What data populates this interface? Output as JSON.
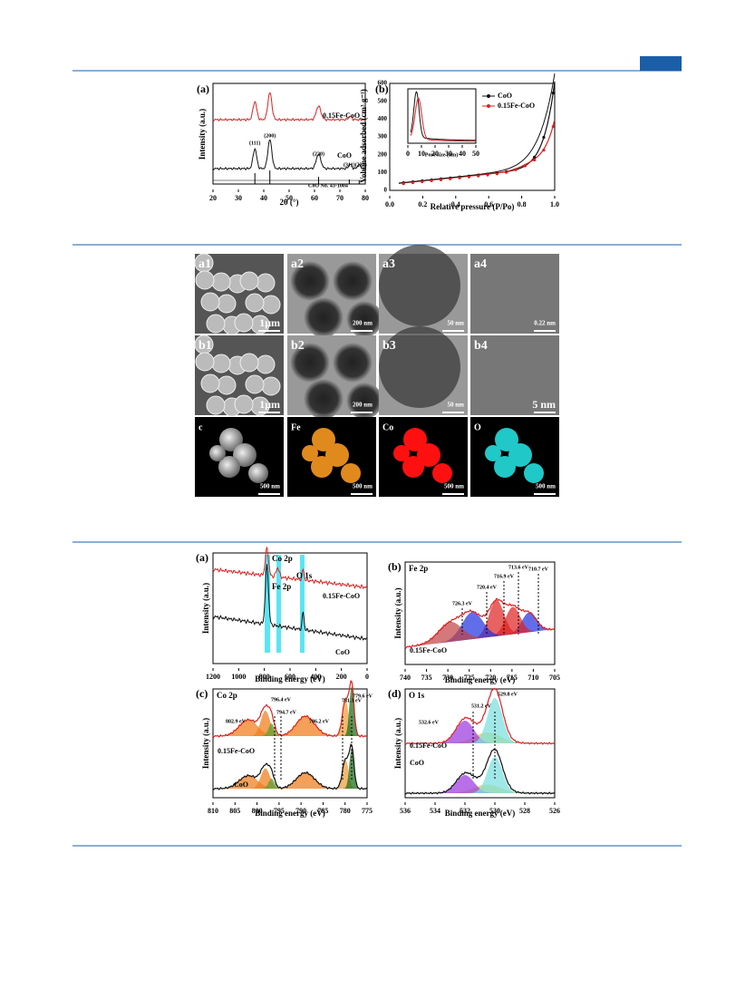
{
  "fig1": {
    "a": {
      "label": "(a)",
      "ylabel": "Intensity (a.u.)",
      "xlabel": "2θ (°)",
      "xticks": [
        "20",
        "30",
        "40",
        "50",
        "60",
        "70",
        "80"
      ],
      "series": [
        "0.15Fe-CoO",
        "CoO"
      ],
      "peaks": [
        "(111)",
        "(200)",
        "(220)",
        "(311)(222)"
      ],
      "ref": "CoO No. 43-1004"
    },
    "b": {
      "label": "(b)",
      "ylabel": "Volume adsorbed (cm³ g⁻¹)",
      "xlabel": "Relative pressure (P/Po)",
      "xticks": [
        "0.0",
        "0.2",
        "0.4",
        "0.6",
        "0.8",
        "1.0"
      ],
      "yticks": [
        "0",
        "100",
        "200",
        "300",
        "400",
        "500",
        "600"
      ],
      "legend": [
        "CoO",
        "0.15Fe-CoO"
      ],
      "inset_xlabel": "Pore size (nm)",
      "inset_xticks": [
        "0",
        "10",
        "20",
        "30",
        "40",
        "50"
      ]
    }
  },
  "fig2": {
    "cells": [
      {
        "label": "a1",
        "scale": "1μm"
      },
      {
        "label": "a2",
        "scale": "200 nm"
      },
      {
        "label": "a3",
        "scale": "50 nm"
      },
      {
        "label": "a4",
        "scale": "0.22 nm"
      },
      {
        "label": "b1",
        "scale": "1μm"
      },
      {
        "label": "b2",
        "scale": "200 nm"
      },
      {
        "label": "b3",
        "scale": "50 nm"
      },
      {
        "label": "b4",
        "scale": "5 nm"
      },
      {
        "label": "c",
        "scale": "500 nm"
      },
      {
        "label": "Fe",
        "scale": "500 nm"
      },
      {
        "label": "Co",
        "scale": "500 nm"
      },
      {
        "label": "O",
        "scale": "500 nm"
      }
    ]
  },
  "fig3": {
    "a": {
      "label": "(a)",
      "ylabel": "Intensity (a.u.)",
      "xlabel": "Binding energy (eV)",
      "xticks": [
        "1200",
        "1000",
        "800",
        "600",
        "400",
        "200",
        "0"
      ],
      "annotations": [
        "Co 2p",
        "Fe 2p",
        "O 1s"
      ],
      "series": [
        "0.15Fe-CoO",
        "CoO"
      ]
    },
    "b": {
      "label": "(b)",
      "title": "Fe 2p",
      "ylabel": "Intensity (a.u.)",
      "xlabel": "Binding energy (eV)",
      "xticks": [
        "740",
        "735",
        "730",
        "725",
        "720",
        "715",
        "710",
        "705"
      ],
      "peaks": [
        "726.3 eV",
        "720.4 eV",
        "716.9 eV",
        "713.6 eV",
        "710.7 eV"
      ],
      "series": "0.15Fe-CoO"
    },
    "c": {
      "label": "(c)",
      "title": "Co 2p",
      "ylabel": "Intensity (a.u.)",
      "xlabel": "Binding energy (eV)",
      "xticks": [
        "810",
        "805",
        "800",
        "795",
        "790",
        "785",
        "780",
        "775"
      ],
      "peaks": [
        "802.9 eV",
        "796.4 eV",
        "794.7 eV",
        "786.2 eV",
        "781.3 eV",
        "779.6 eV"
      ],
      "series": [
        "0.15Fe-CoO",
        "CoO"
      ]
    },
    "d": {
      "label": "(d)",
      "title": "O 1s",
      "ylabel": "Intensity (a.u.)",
      "xlabel": "Binding energy (eV)",
      "xticks": [
        "536",
        "534",
        "532",
        "530",
        "528",
        "526"
      ],
      "peaks": [
        "532.6 eV",
        "531.2 eV",
        "529.8 eV"
      ],
      "series": [
        "0.15Fe-CoO",
        "CoO"
      ]
    }
  }
}
